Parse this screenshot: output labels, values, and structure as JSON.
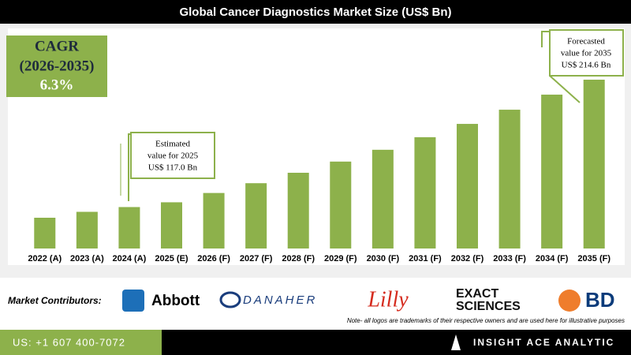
{
  "chart_data": {
    "type": "bar",
    "title": "Global Cancer Diagnostics Market Size (US$ Bn)",
    "categories": [
      "2022 (A)",
      "2023 (A)",
      "2024 (A)",
      "2025 (E)",
      "2026 (F)",
      "2027 (F)",
      "2028 (F)",
      "2029 (F)",
      "2030 (F)",
      "2031 (F)",
      "2032 (F)",
      "2033 (F)",
      "2034 (F)",
      "2035 (F)"
    ],
    "values": [
      104.7,
      109.4,
      113.2,
      117.0,
      124.4,
      132.2,
      140.5,
      149.4,
      158.8,
      168.8,
      179.4,
      190.7,
      202.7,
      214.6
    ],
    "color": "#8db14b",
    "cagr": [
      "CAGR",
      "(2026-2035)",
      "6.3%"
    ],
    "annotations": [
      {
        "lines": [
          "Estimated",
          "value for 2025",
          "US$ 117.0 Bn"
        ]
      },
      {
        "lines": [
          "Forecasted",
          "value for 2035",
          "US$ 214.6 Bn"
        ]
      }
    ]
  },
  "footer": {
    "contributors_label": "Market Contributors:",
    "logos": [
      "Abbott",
      "DANAHER",
      "Lilly",
      "EXACT",
      "SCIENCES",
      "BD"
    ],
    "note": "Note- all logos are trademarks of their respective owners and are used here for illustrative purposes",
    "phone": "US: +1 607 400-7072",
    "brand": "INSIGHT ACE ANALYTIC"
  }
}
